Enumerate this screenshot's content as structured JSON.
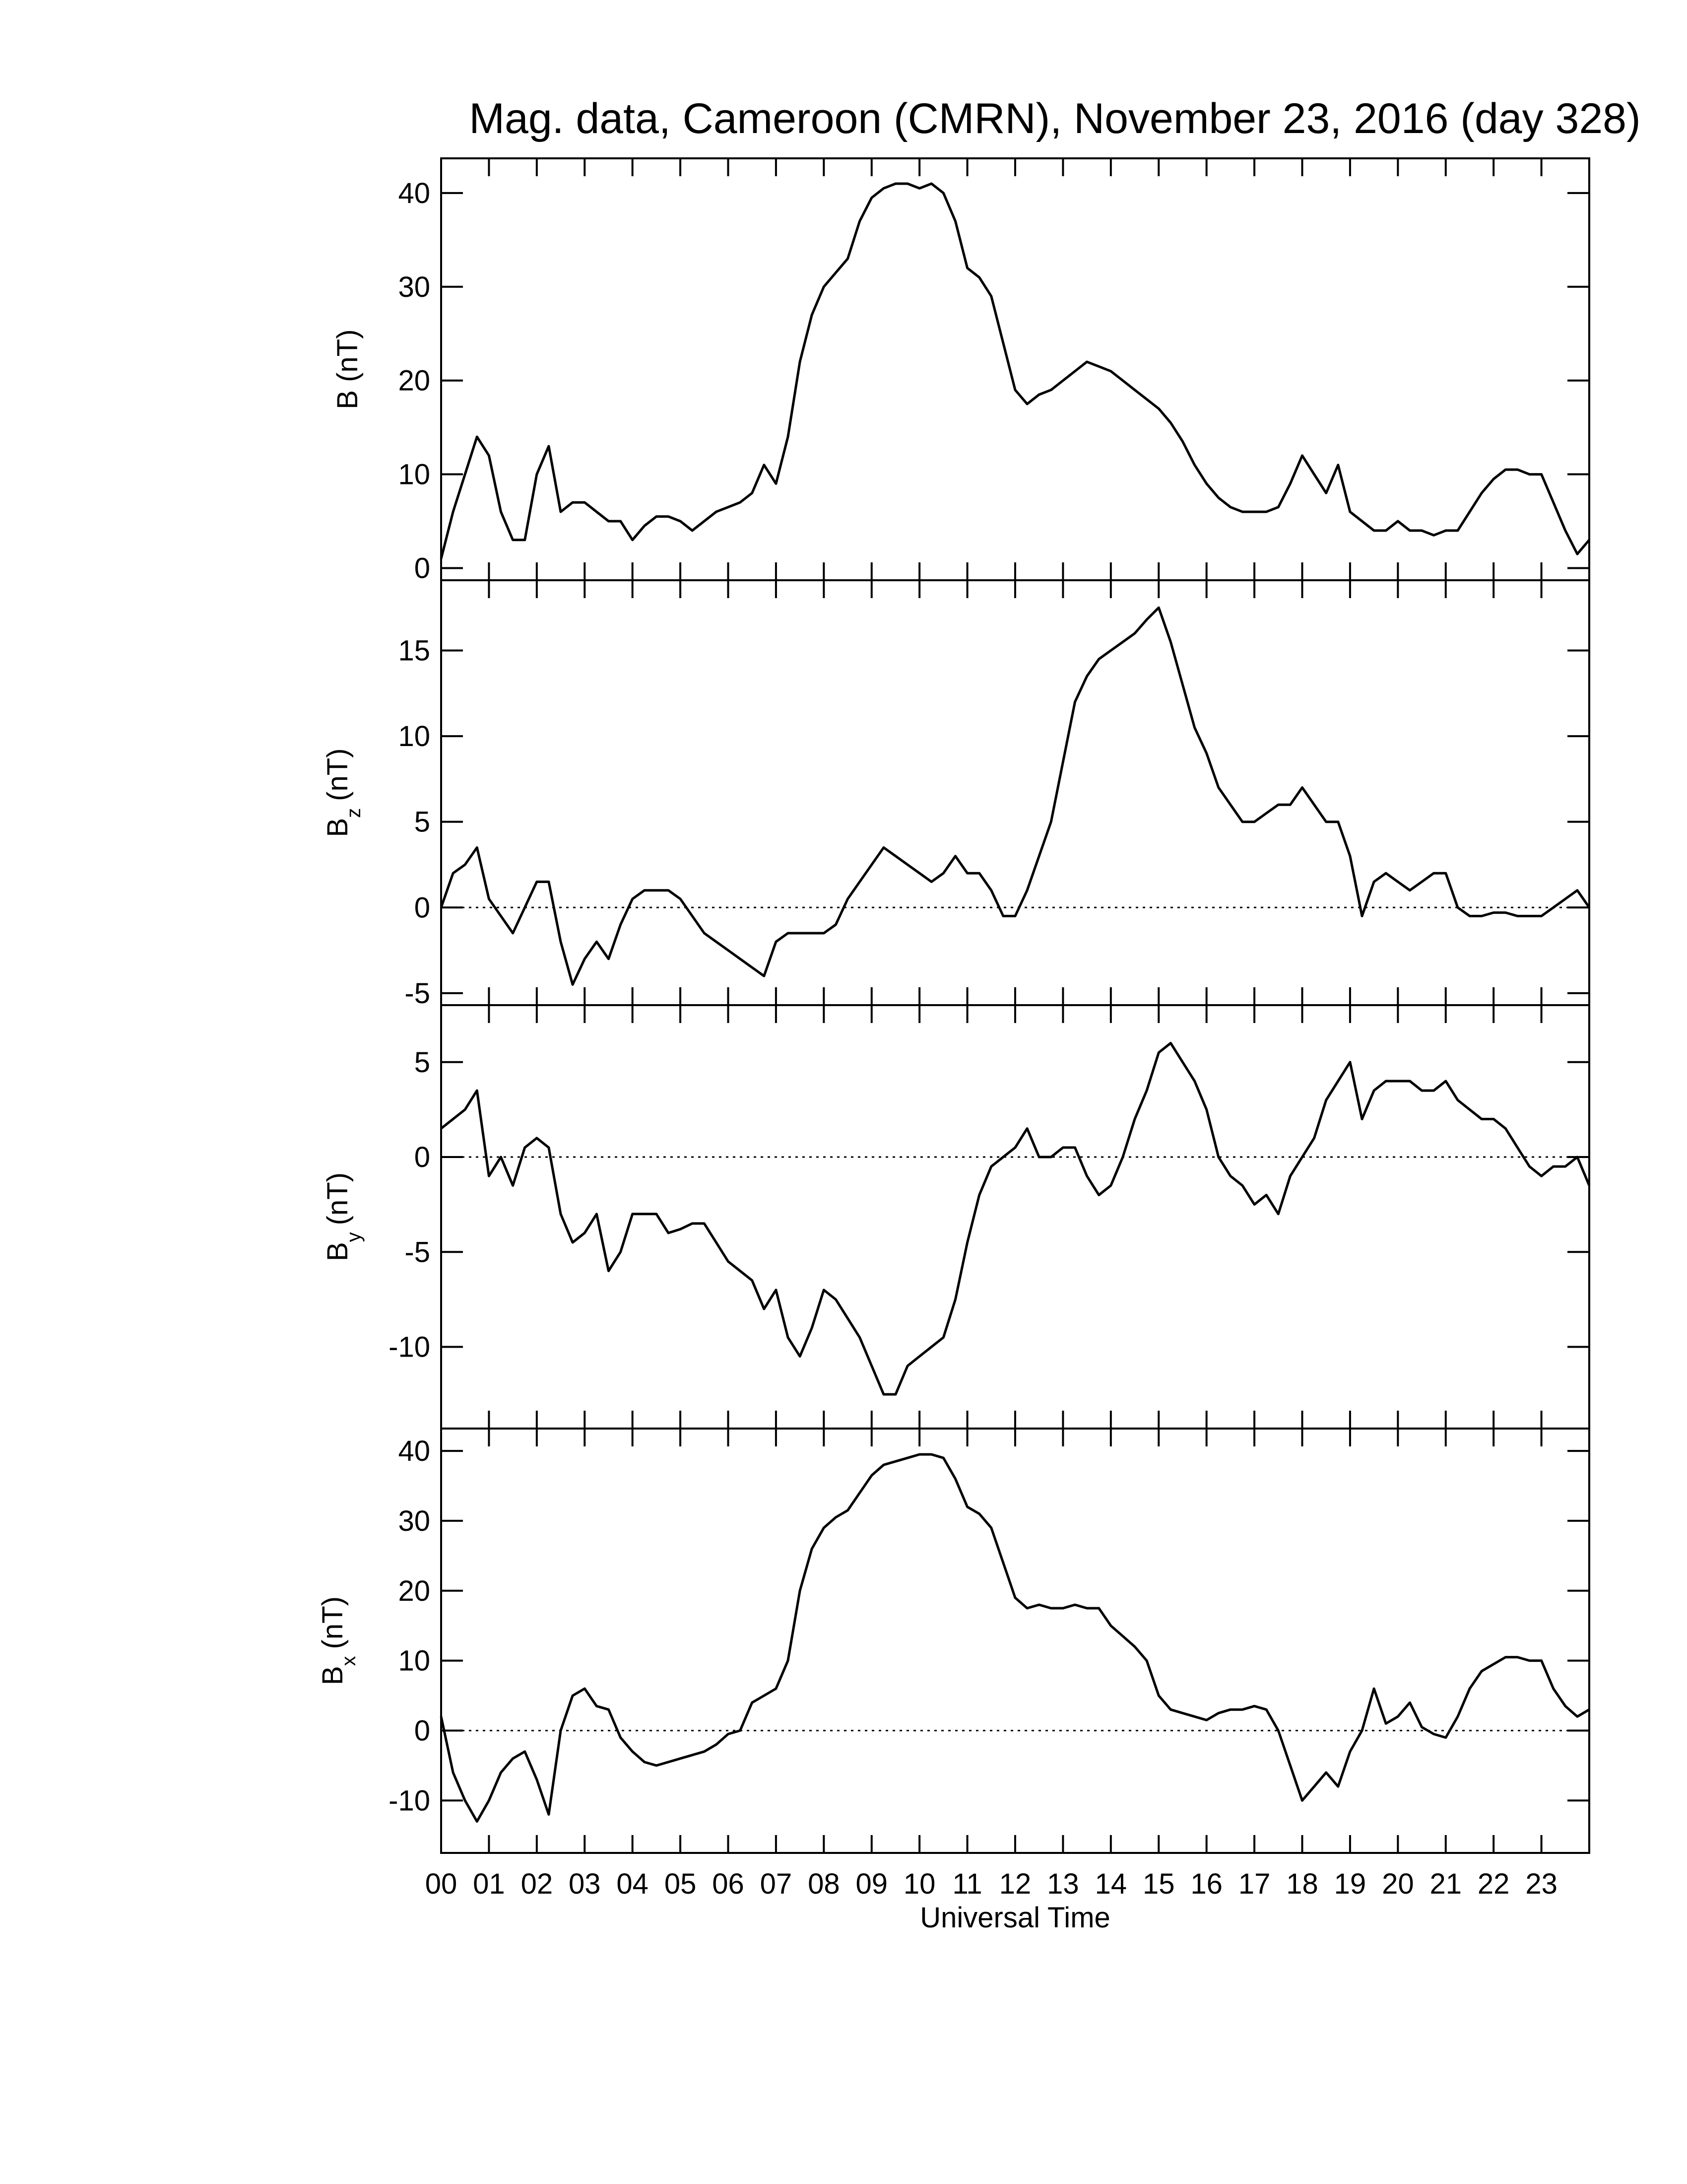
{
  "chart_data": [
    {
      "type": "line",
      "title": "Mag. data, Cameroon (CMRN), November 23, 2016 (day 328)",
      "ylabel": "B (nT)",
      "x": [
        0,
        0.25,
        0.5,
        0.75,
        1,
        1.25,
        1.5,
        1.75,
        2,
        2.25,
        2.5,
        2.75,
        3,
        3.25,
        3.5,
        3.75,
        4,
        4.25,
        4.5,
        4.75,
        5,
        5.25,
        5.5,
        5.75,
        6,
        6.25,
        6.5,
        6.75,
        7,
        7.25,
        7.5,
        7.75,
        8,
        8.25,
        8.5,
        8.75,
        9,
        9.25,
        9.5,
        9.75,
        10,
        10.25,
        10.5,
        10.75,
        11,
        11.25,
        11.5,
        11.75,
        12,
        12.25,
        12.5,
        12.75,
        13,
        13.25,
        13.5,
        13.75,
        14,
        14.25,
        14.5,
        14.75,
        15,
        15.25,
        15.5,
        15.75,
        16,
        16.25,
        16.5,
        16.75,
        17,
        17.25,
        17.5,
        17.75,
        18,
        18.25,
        18.5,
        18.75,
        19,
        19.25,
        19.5,
        19.75,
        20,
        20.25,
        20.5,
        20.75,
        21,
        21.25,
        21.5,
        21.75,
        22,
        22.25,
        22.5,
        22.75,
        23,
        23.25,
        23.5,
        23.75,
        24
      ],
      "values": [
        1,
        6,
        10,
        14,
        12,
        6,
        3,
        3,
        10,
        13,
        6,
        7,
        7,
        6,
        5,
        5,
        3,
        4.5,
        5.5,
        5.5,
        5,
        4,
        5,
        6,
        6.5,
        7,
        8,
        11,
        9,
        14,
        22,
        27,
        30,
        31.5,
        33,
        37,
        39.5,
        40.5,
        41,
        41,
        40.5,
        41,
        40,
        37,
        32,
        31,
        29,
        24,
        19,
        17.5,
        18.5,
        19,
        20,
        21,
        22,
        21.5,
        21,
        20,
        19,
        18,
        17,
        15.5,
        13.5,
        11,
        9,
        7.5,
        6.5,
        6,
        6,
        6,
        6.5,
        9,
        12,
        10,
        8,
        11,
        6,
        5,
        4,
        4,
        5,
        4,
        4,
        3.5,
        4,
        4,
        6,
        8,
        9.5,
        10.5,
        10.5,
        10,
        10,
        7,
        4,
        1.5,
        3
      ],
      "color": "#000000",
      "xlim": [
        0,
        24
      ],
      "xticks": [
        0,
        1,
        2,
        3,
        4,
        5,
        6,
        7,
        8,
        9,
        10,
        11,
        12,
        13,
        14,
        15,
        16,
        17,
        18,
        19,
        20,
        21,
        22,
        23
      ],
      "ylim": [
        -1.3,
        43.7
      ],
      "yticks": [
        0,
        10,
        20,
        30,
        40
      ],
      "zero_line": false
    },
    {
      "type": "line",
      "ylabel": "B",
      "ylabel_subscript": "z",
      "ylabel_unit": "(nT)",
      "x": [
        0,
        0.25,
        0.5,
        0.75,
        1,
        1.25,
        1.5,
        1.75,
        2,
        2.25,
        2.5,
        2.75,
        3,
        3.25,
        3.5,
        3.75,
        4,
        4.25,
        4.5,
        4.75,
        5,
        5.25,
        5.5,
        5.75,
        6,
        6.25,
        6.5,
        6.75,
        7,
        7.25,
        7.5,
        7.75,
        8,
        8.25,
        8.5,
        8.75,
        9,
        9.25,
        9.5,
        9.75,
        10,
        10.25,
        10.5,
        10.75,
        11,
        11.25,
        11.5,
        11.75,
        12,
        12.25,
        12.5,
        12.75,
        13,
        13.25,
        13.5,
        13.75,
        14,
        14.25,
        14.5,
        14.75,
        15,
        15.25,
        15.5,
        15.75,
        16,
        16.25,
        16.5,
        16.75,
        17,
        17.25,
        17.5,
        17.75,
        18,
        18.25,
        18.5,
        18.75,
        19,
        19.25,
        19.5,
        19.75,
        20,
        20.25,
        20.5,
        20.75,
        21,
        21.25,
        21.5,
        21.75,
        22,
        22.25,
        22.5,
        22.75,
        23,
        23.25,
        23.5,
        23.75,
        24
      ],
      "values": [
        0,
        2,
        2.5,
        3.5,
        0.5,
        -0.5,
        -1.5,
        0,
        1.5,
        1.5,
        -2,
        -4.5,
        -3,
        -2,
        -3,
        -1,
        0.5,
        1,
        1,
        1,
        0.5,
        -0.5,
        -1.5,
        -2,
        -2.5,
        -3,
        -3.5,
        -4,
        -2,
        -1.5,
        -1.5,
        -1.5,
        -1.5,
        -1,
        0.5,
        1.5,
        2.5,
        3.5,
        3,
        2.5,
        2,
        1.5,
        2,
        3,
        2,
        2,
        1,
        -0.5,
        -0.5,
        1,
        3,
        5,
        8.5,
        12,
        13.5,
        14.5,
        15,
        15.5,
        16,
        16.8,
        17.5,
        15.5,
        13,
        10.5,
        9,
        7,
        6,
        5,
        5,
        5.5,
        6,
        6,
        7,
        6,
        5,
        5,
        3,
        -0.5,
        1.5,
        2,
        1.5,
        1,
        1.5,
        2,
        2,
        0,
        -0.5,
        -0.5,
        -0.3,
        -0.3,
        -0.5,
        -0.5,
        -0.5,
        0,
        0.5,
        1,
        0
      ],
      "color": "#000000",
      "xlim": [
        0,
        24
      ],
      "xticks": [
        0,
        1,
        2,
        3,
        4,
        5,
        6,
        7,
        8,
        9,
        10,
        11,
        12,
        13,
        14,
        15,
        16,
        17,
        18,
        19,
        20,
        21,
        22,
        23
      ],
      "ylim": [
        -5.7,
        19.1
      ],
      "yticks": [
        -5,
        0,
        5,
        10,
        15
      ],
      "zero_line": true
    },
    {
      "type": "line",
      "ylabel": "B",
      "ylabel_subscript": "y",
      "ylabel_unit": "(nT)",
      "x": [
        0,
        0.25,
        0.5,
        0.75,
        1,
        1.25,
        1.5,
        1.75,
        2,
        2.25,
        2.5,
        2.75,
        3,
        3.25,
        3.5,
        3.75,
        4,
        4.25,
        4.5,
        4.75,
        5,
        5.25,
        5.5,
        5.75,
        6,
        6.25,
        6.5,
        6.75,
        7,
        7.25,
        7.5,
        7.75,
        8,
        8.25,
        8.5,
        8.75,
        9,
        9.25,
        9.5,
        9.75,
        10,
        10.25,
        10.5,
        10.75,
        11,
        11.25,
        11.5,
        11.75,
        12,
        12.25,
        12.5,
        12.75,
        13,
        13.25,
        13.5,
        13.75,
        14,
        14.25,
        14.5,
        14.75,
        15,
        15.25,
        15.5,
        15.75,
        16,
        16.25,
        16.5,
        16.75,
        17,
        17.25,
        17.5,
        17.75,
        18,
        18.25,
        18.5,
        18.75,
        19,
        19.25,
        19.5,
        19.75,
        20,
        20.25,
        20.5,
        20.75,
        21,
        21.25,
        21.5,
        21.75,
        22,
        22.25,
        22.5,
        22.75,
        23,
        23.25,
        23.5,
        23.75,
        24
      ],
      "values": [
        1.5,
        2,
        2.5,
        3.5,
        -1,
        0,
        -1.5,
        0.5,
        1,
        0.5,
        -3,
        -4.5,
        -4,
        -3,
        -6,
        -5,
        -3,
        -3,
        -3,
        -4,
        -3.8,
        -3.5,
        -3.5,
        -4.5,
        -5.5,
        -6,
        -6.5,
        -8,
        -7,
        -9.5,
        -10.5,
        -9,
        -7,
        -7.5,
        -8.5,
        -9.5,
        -11,
        -12.5,
        -12.5,
        -11,
        -10.5,
        -10,
        -9.5,
        -7.5,
        -4.5,
        -2,
        -0.5,
        0,
        0.5,
        1.5,
        0,
        0,
        0.5,
        0.5,
        -1,
        -2,
        -1.5,
        0,
        2,
        3.5,
        5.5,
        6,
        5,
        4,
        2.5,
        0,
        -1,
        -1.5,
        -2.5,
        -2,
        -3,
        -1,
        0,
        1,
        3,
        4,
        5,
        2,
        3.5,
        4,
        4,
        4,
        3.5,
        3.5,
        4,
        3,
        2.5,
        2,
        2,
        1.5,
        0.5,
        -0.5,
        -1,
        -0.5,
        -0.5,
        0,
        -1.5
      ],
      "color": "#000000",
      "xlim": [
        0,
        24
      ],
      "xticks": [
        0,
        1,
        2,
        3,
        4,
        5,
        6,
        7,
        8,
        9,
        10,
        11,
        12,
        13,
        14,
        15,
        16,
        17,
        18,
        19,
        20,
        21,
        22,
        23
      ],
      "ylim": [
        -14.3,
        8
      ],
      "yticks": [
        -10,
        -5,
        0,
        5
      ],
      "zero_line": true
    },
    {
      "type": "line",
      "ylabel": "B",
      "ylabel_subscript": "x",
      "ylabel_unit": "(nT)",
      "xlabel": "Universal Time",
      "x": [
        0,
        0.25,
        0.5,
        0.75,
        1,
        1.25,
        1.5,
        1.75,
        2,
        2.25,
        2.5,
        2.75,
        3,
        3.25,
        3.5,
        3.75,
        4,
        4.25,
        4.5,
        4.75,
        5,
        5.25,
        5.5,
        5.75,
        6,
        6.25,
        6.5,
        6.75,
        7,
        7.25,
        7.5,
        7.75,
        8,
        8.25,
        8.5,
        8.75,
        9,
        9.25,
        9.5,
        9.75,
        10,
        10.25,
        10.5,
        10.75,
        11,
        11.25,
        11.5,
        11.75,
        12,
        12.25,
        12.5,
        12.75,
        13,
        13.25,
        13.5,
        13.75,
        14,
        14.25,
        14.5,
        14.75,
        15,
        15.25,
        15.5,
        15.75,
        16,
        16.25,
        16.5,
        16.75,
        17,
        17.25,
        17.5,
        17.75,
        18,
        18.25,
        18.5,
        18.75,
        19,
        19.25,
        19.5,
        19.75,
        20,
        20.25,
        20.5,
        20.75,
        21,
        21.25,
        21.5,
        21.75,
        22,
        22.25,
        22.5,
        22.75,
        23,
        23.25,
        23.5,
        23.75,
        24
      ],
      "values": [
        2,
        -6,
        -10,
        -13,
        -10,
        -6,
        -4,
        -3,
        -7,
        -12,
        0,
        5,
        6,
        3.5,
        3,
        -1,
        -3,
        -4.5,
        -5,
        -4.5,
        -4,
        -3.5,
        -3,
        -2,
        -0.5,
        0,
        4,
        5,
        6,
        10,
        20,
        26,
        29,
        30.5,
        31.5,
        34,
        36.5,
        38,
        38.5,
        39,
        39.5,
        39.5,
        39,
        36,
        32,
        31,
        29,
        24,
        19,
        17.5,
        18,
        17.5,
        17.5,
        18,
        17.5,
        17.5,
        15,
        13.5,
        12,
        10,
        5,
        3,
        2.5,
        2,
        1.5,
        2.5,
        3,
        3,
        3.5,
        3,
        0,
        -5,
        -10,
        -8,
        -6,
        -8,
        -3,
        0,
        6,
        1,
        2,
        4,
        0.5,
        -0.5,
        -1,
        2,
        6,
        8.5,
        9.5,
        10.5,
        10.5,
        10,
        10,
        6,
        3.5,
        2,
        3
      ],
      "color": "#000000",
      "xlim": [
        0,
        24
      ],
      "xticks": [
        {
          "value": 0,
          "label": "00"
        },
        {
          "value": 1,
          "label": "01"
        },
        {
          "value": 2,
          "label": "02"
        },
        {
          "value": 3,
          "label": "03"
        },
        {
          "value": 4,
          "label": "04"
        },
        {
          "value": 5,
          "label": "05"
        },
        {
          "value": 6,
          "label": "06"
        },
        {
          "value": 7,
          "label": "07"
        },
        {
          "value": 8,
          "label": "08"
        },
        {
          "value": 9,
          "label": "09"
        },
        {
          "value": 10,
          "label": "10"
        },
        {
          "value": 11,
          "label": "11"
        },
        {
          "value": 12,
          "label": "12"
        },
        {
          "value": 13,
          "label": "13"
        },
        {
          "value": 14,
          "label": "14"
        },
        {
          "value": 15,
          "label": "15"
        },
        {
          "value": 16,
          "label": "16"
        },
        {
          "value": 17,
          "label": "17"
        },
        {
          "value": 18,
          "label": "18"
        },
        {
          "value": 19,
          "label": "19"
        },
        {
          "value": 20,
          "label": "20"
        },
        {
          "value": 21,
          "label": "21"
        },
        {
          "value": 22,
          "label": "22"
        },
        {
          "value": 23,
          "label": "23"
        }
      ],
      "ylim": [
        -17.5,
        43.2
      ],
      "yticks": [
        -10,
        0,
        10,
        20,
        30,
        40
      ],
      "zero_line": true
    }
  ]
}
